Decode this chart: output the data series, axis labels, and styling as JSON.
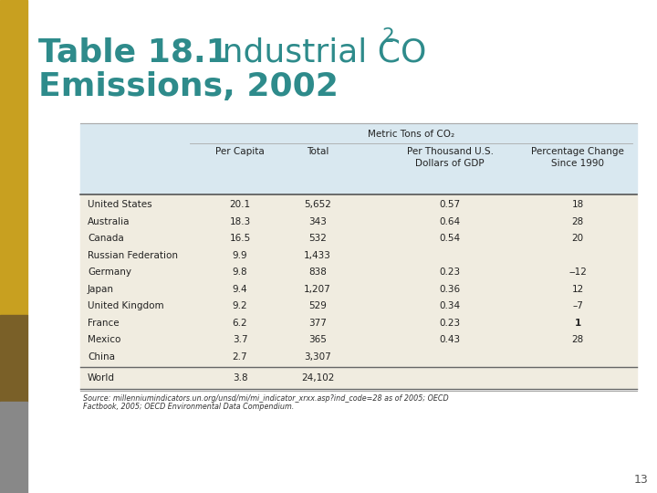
{
  "title_bold": "Table 18.1",
  "title_normal": "  Industrial CO",
  "title_sub": "2",
  "title_line2": "Emissions, 2002",
  "title_color": "#2e8b8b",
  "bg_color": "#ffffff",
  "table_header_bg": "#d9e8f0",
  "table_data_bg": "#f0ece0",
  "header_row1_text": "Metric Tons of CO₂",
  "col_headers": [
    "Per Capita",
    "Total",
    "Per Thousand U.S.\nDollars of GDP",
    "Percentage Change\nSince 1990"
  ],
  "countries": [
    "United States",
    "Australia",
    "Canada",
    "Russian Federation",
    "Germany",
    "Japan",
    "United Kingdom",
    "France",
    "Mexico",
    "China"
  ],
  "per_capita": [
    "20.1",
    "18.3",
    "16.5",
    "9.9",
    "9.8",
    "9.4",
    "9.2",
    "6.2",
    "3.7",
    "2.7"
  ],
  "total": [
    "5,652",
    "343",
    "532",
    "1,433",
    "838",
    "1,207",
    "529",
    "377",
    "365",
    "3,307"
  ],
  "per_thousand": [
    "0.57",
    "0.64",
    "0.54",
    "",
    "0.23",
    "0.36",
    "0.34",
    "0.23",
    "0.43",
    ""
  ],
  "pct_change": [
    "18",
    "28",
    "20",
    "",
    "‒12",
    "12",
    "–7",
    "1",
    "28",
    ""
  ],
  "world_label": "World",
  "world_per_capita": "3.8",
  "world_total": "24,102",
  "source_italic": "Source: ",
  "source_url": "millenniumindicators.un.org/unsd/mi/mi_indicator_xrxx.asp?ind_code=28",
  "source_rest": " as of 2005; OECD\n",
  "source_italic2": "Factbook",
  "source_rest2": ", 2005; OECD Environmental Data Compendium.",
  "page_number": "13",
  "left_bar_top_color": "#c8a020",
  "left_bar_mid_color": "#7a6028",
  "left_bar_bot_color": "#888888"
}
